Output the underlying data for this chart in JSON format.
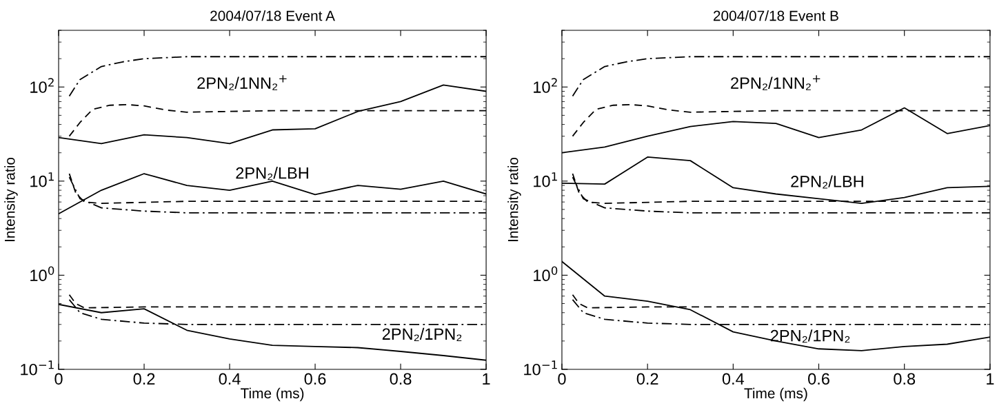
{
  "chart_data": [
    {
      "type": "line",
      "title": "2004/07/18 Event A",
      "xlabel": "Time (ms)",
      "ylabel": "Intensity ratio",
      "log": "y",
      "marker": "none",
      "xlim": [
        0,
        1
      ],
      "xticks": [
        0,
        0.2,
        0.4,
        0.6,
        0.8,
        1
      ],
      "ylim": [
        0.1,
        400
      ],
      "yticks": [
        {
          "value": 0.1,
          "label": "10$^{−1}$"
        },
        {
          "value": 1,
          "label": "10$^{0}$"
        },
        {
          "value": 10,
          "label": "10$^{1}$"
        },
        {
          "value": 100,
          "label": "10$^{2}$"
        }
      ],
      "annotations": [
        "2PN₂/1NN₂$^{+}$",
        "2PN₂/LBH",
        "2PN₂/1PN₂"
      ],
      "series": [
        {
          "color": "#000000",
          "line_style": "solid",
          "x": [
            0,
            0.1,
            0.2,
            0.3,
            0.4,
            0.5,
            0.6,
            0.7,
            0.8,
            0.9,
            1
          ],
          "values": [
            29,
            25,
            31,
            29,
            25,
            35,
            36,
            55,
            70,
            105,
            90
          ]
        },
        {
          "color": "#000000",
          "line_style": "solid",
          "x": [
            0,
            0.1,
            0.2,
            0.3,
            0.4,
            0.5,
            0.6,
            0.7,
            0.8,
            0.9,
            1
          ],
          "values": [
            4.5,
            8,
            12,
            9,
            8,
            10,
            7.2,
            9,
            8.2,
            10,
            7.3
          ]
        },
        {
          "color": "#000000",
          "line_style": "solid",
          "x": [
            0,
            0.1,
            0.2,
            0.3,
            0.4,
            0.5,
            0.6,
            0.7,
            0.8,
            0.9,
            1
          ],
          "values": [
            0.49,
            0.4,
            0.44,
            0.26,
            0.21,
            0.18,
            0.175,
            0.17,
            0.155,
            0.14,
            0.125
          ]
        },
        {
          "color": "#000000",
          "line_style": "dashdot",
          "x": [
            0.025,
            0.05,
            0.1,
            0.15,
            0.2,
            0.3,
            0.5,
            1
          ],
          "values": [
            80,
            120,
            165,
            185,
            200,
            210,
            210,
            210
          ]
        },
        {
          "color": "#000000",
          "line_style": "dashed",
          "x": [
            0.025,
            0.05,
            0.08,
            0.12,
            0.16,
            0.2,
            0.25,
            0.3,
            0.4,
            0.5,
            1
          ],
          "values": [
            30,
            42,
            58,
            64,
            65,
            63,
            57,
            54,
            55,
            56,
            56
          ]
        },
        {
          "color": "#000000",
          "line_style": "dashed",
          "x": [
            0.025,
            0.04,
            0.06,
            0.1,
            0.3,
            1
          ],
          "values": [
            12,
            7.5,
            6,
            5.8,
            6.1,
            6.1
          ]
        },
        {
          "color": "#000000",
          "line_style": "dashdot",
          "x": [
            0.025,
            0.05,
            0.1,
            0.2,
            0.3,
            1
          ],
          "values": [
            11,
            6.5,
            5.2,
            4.8,
            4.6,
            4.6
          ]
        },
        {
          "color": "#000000",
          "line_style": "dashed",
          "x": [
            0.025,
            0.04,
            0.06,
            0.2,
            1
          ],
          "values": [
            0.62,
            0.5,
            0.45,
            0.46,
            0.46
          ]
        },
        {
          "color": "#000000",
          "line_style": "dashdot",
          "x": [
            0.025,
            0.05,
            0.1,
            0.2,
            0.3,
            1
          ],
          "values": [
            0.55,
            0.4,
            0.34,
            0.31,
            0.3,
            0.3
          ]
        }
      ]
    },
    {
      "type": "line",
      "title": "2004/07/18 Event B",
      "xlabel": "Time (ms)",
      "ylabel": "Intensity ratio",
      "log": "y",
      "marker": "none",
      "xlim": [
        0,
        1
      ],
      "xticks": [
        0,
        0.2,
        0.4,
        0.6,
        0.8,
        1
      ],
      "ylim": [
        0.1,
        400
      ],
      "yticks": [
        {
          "value": 0.1,
          "label": "10$^{−1}$"
        },
        {
          "value": 1,
          "label": "10$^{0}$"
        },
        {
          "value": 10,
          "label": "10$^{1}$"
        },
        {
          "value": 100,
          "label": "10$^{2}$"
        }
      ],
      "annotations": [
        "2PN₂/1NN₂$^{+}$",
        "2PN₂/LBH",
        "2PN₂/1PN₂"
      ],
      "series": [
        {
          "color": "#000000",
          "line_style": "solid",
          "x": [
            0,
            0.1,
            0.2,
            0.3,
            0.4,
            0.5,
            0.6,
            0.7,
            0.8,
            0.9,
            1
          ],
          "values": [
            20,
            23,
            30,
            38,
            43,
            41,
            29,
            35,
            60,
            32,
            39
          ]
        },
        {
          "color": "#000000",
          "line_style": "solid",
          "x": [
            0,
            0.1,
            0.2,
            0.3,
            0.4,
            0.5,
            0.6,
            0.7,
            0.8,
            0.9,
            1
          ],
          "values": [
            9.5,
            9.3,
            18,
            16.5,
            8.5,
            7.3,
            6.5,
            5.8,
            6.7,
            8.5,
            8.8
          ]
        },
        {
          "color": "#000000",
          "line_style": "solid",
          "x": [
            0,
            0.1,
            0.2,
            0.3,
            0.4,
            0.5,
            0.6,
            0.7,
            0.8,
            0.9,
            1
          ],
          "values": [
            1.4,
            0.6,
            0.53,
            0.43,
            0.25,
            0.2,
            0.165,
            0.158,
            0.175,
            0.185,
            0.22
          ]
        },
        {
          "color": "#000000",
          "line_style": "dashdot",
          "x": [
            0.025,
            0.05,
            0.1,
            0.15,
            0.2,
            0.3,
            0.5,
            1
          ],
          "values": [
            80,
            120,
            165,
            185,
            200,
            210,
            210,
            210
          ]
        },
        {
          "color": "#000000",
          "line_style": "dashed",
          "x": [
            0.025,
            0.05,
            0.08,
            0.12,
            0.16,
            0.2,
            0.25,
            0.3,
            0.4,
            0.5,
            1
          ],
          "values": [
            30,
            42,
            58,
            64,
            65,
            63,
            57,
            54,
            55,
            56,
            56
          ]
        },
        {
          "color": "#000000",
          "line_style": "dashed",
          "x": [
            0.025,
            0.04,
            0.06,
            0.1,
            0.3,
            1
          ],
          "values": [
            12,
            7.5,
            6,
            5.8,
            6.1,
            6.1
          ]
        },
        {
          "color": "#000000",
          "line_style": "dashdot",
          "x": [
            0.025,
            0.05,
            0.1,
            0.2,
            0.3,
            1
          ],
          "values": [
            11,
            6.5,
            5.2,
            4.8,
            4.6,
            4.6
          ]
        },
        {
          "color": "#000000",
          "line_style": "dashed",
          "x": [
            0.025,
            0.04,
            0.06,
            0.2,
            1
          ],
          "values": [
            0.62,
            0.5,
            0.45,
            0.46,
            0.46
          ]
        },
        {
          "color": "#000000",
          "line_style": "dashdot",
          "x": [
            0.025,
            0.05,
            0.1,
            0.2,
            0.3,
            1
          ],
          "values": [
            0.55,
            0.4,
            0.34,
            0.31,
            0.3,
            0.3
          ]
        }
      ]
    }
  ]
}
